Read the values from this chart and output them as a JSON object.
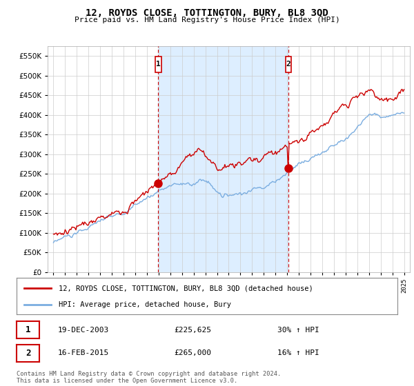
{
  "title": "12, ROYDS CLOSE, TOTTINGTON, BURY, BL8 3QD",
  "subtitle": "Price paid vs. HM Land Registry's House Price Index (HPI)",
  "legend_line1": "12, ROYDS CLOSE, TOTTINGTON, BURY, BL8 3QD (detached house)",
  "legend_line2": "HPI: Average price, detached house, Bury",
  "footer1": "Contains HM Land Registry data © Crown copyright and database right 2024.",
  "footer2": "This data is licensed under the Open Government Licence v3.0.",
  "purchase1_date": "19-DEC-2003",
  "purchase1_price": 225625,
  "purchase1_hpi_text": "30% ↑ HPI",
  "purchase2_date": "16-FEB-2015",
  "purchase2_price": 265000,
  "purchase2_hpi_text": "16% ↑ HPI",
  "purchase1_year": 2003.97,
  "purchase2_year": 2015.12,
  "house_color": "#cc0000",
  "hpi_color": "#7aade0",
  "shade_color": "#ddeeff",
  "vline_color": "#cc0000",
  "background_color": "#ffffff",
  "grid_color": "#cccccc",
  "ylim": [
    0,
    575000
  ],
  "xlim_start": 1994.5,
  "xlim_end": 2025.5,
  "yticks": [
    0,
    50000,
    100000,
    150000,
    200000,
    250000,
    300000,
    350000,
    400000,
    450000,
    500000,
    550000
  ],
  "xticks": [
    1995,
    1996,
    1997,
    1998,
    1999,
    2000,
    2001,
    2002,
    2003,
    2004,
    2005,
    2006,
    2007,
    2008,
    2009,
    2010,
    2011,
    2012,
    2013,
    2014,
    2015,
    2016,
    2017,
    2018,
    2019,
    2020,
    2021,
    2022,
    2023,
    2024,
    2025
  ]
}
